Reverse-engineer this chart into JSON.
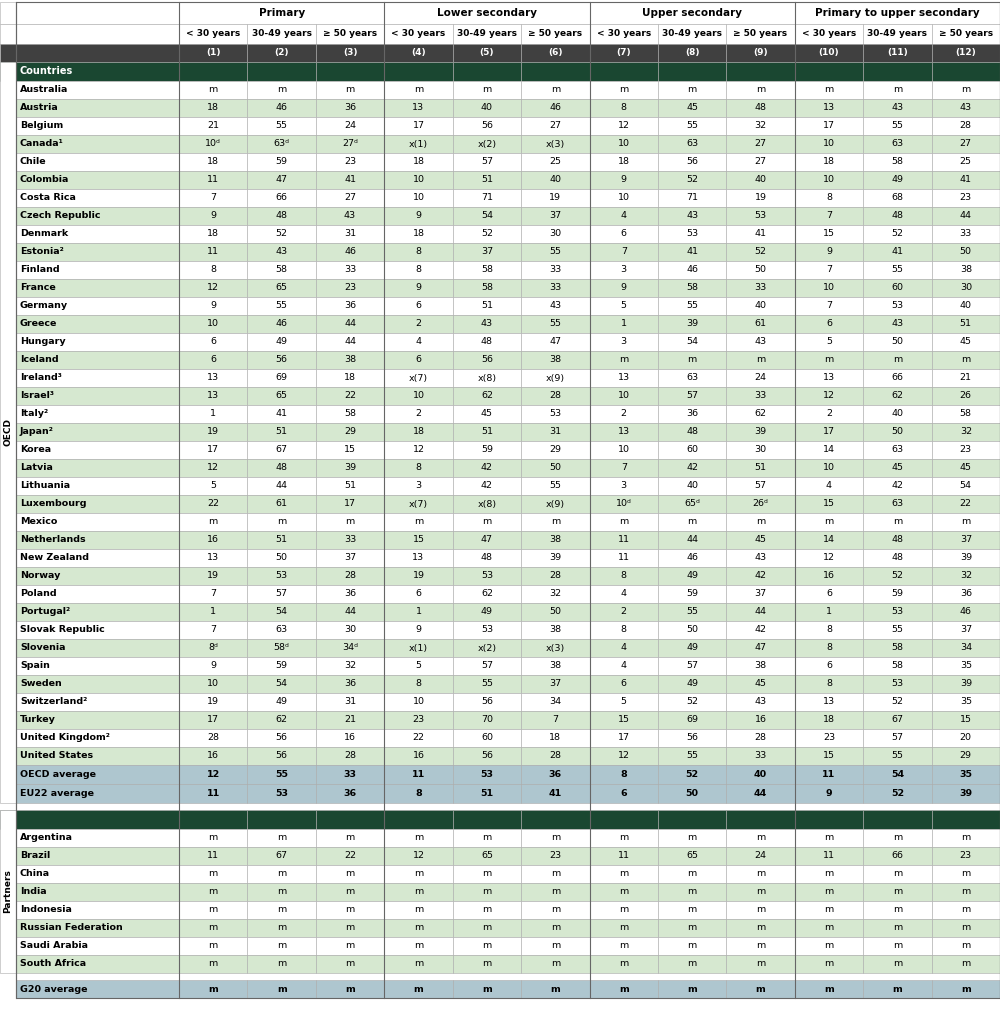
{
  "col_groups": [
    {
      "label": "Primary",
      "span": 3
    },
    {
      "label": "Lower secondary",
      "span": 3
    },
    {
      "label": "Upper secondary",
      "span": 3
    },
    {
      "label": "Primary to upper secondary",
      "span": 3
    }
  ],
  "col_headers": [
    "< 30 years",
    "30-49 years",
    "≥ 50 years",
    "< 30 years",
    "30-49 years",
    "≥ 50 years",
    "< 30 years",
    "30-49 years",
    "≥ 50 years",
    "< 30 years",
    "30-49 years",
    "≥ 50 years"
  ],
  "col_numbers": [
    "(1)",
    "(2)",
    "(3)",
    "(4)",
    "(5)",
    "(6)",
    "(7)",
    "(8)",
    "(9)",
    "(10)",
    "(11)",
    "(12)"
  ],
  "oecd_rows": [
    {
      "country": "Australia",
      "shade": false,
      "data": [
        "m",
        "m",
        "m",
        "m",
        "m",
        "m",
        "m",
        "m",
        "m",
        "m",
        "m",
        "m"
      ]
    },
    {
      "country": "Austria",
      "shade": true,
      "data": [
        "18",
        "46",
        "36",
        "13",
        "40",
        "46",
        "8",
        "45",
        "48",
        "13",
        "43",
        "43"
      ]
    },
    {
      "country": "Belgium",
      "shade": false,
      "data": [
        "21",
        "55",
        "24",
        "17",
        "56",
        "27",
        "12",
        "55",
        "32",
        "17",
        "55",
        "28"
      ]
    },
    {
      "country": "Canada¹",
      "shade": true,
      "data": [
        "10ᵈ",
        "63ᵈ",
        "27ᵈ",
        "x(1)",
        "x(2)",
        "x(3)",
        "10",
        "63",
        "27",
        "10",
        "63",
        "27"
      ]
    },
    {
      "country": "Chile",
      "shade": false,
      "data": [
        "18",
        "59",
        "23",
        "18",
        "57",
        "25",
        "18",
        "56",
        "27",
        "18",
        "58",
        "25"
      ]
    },
    {
      "country": "Colombia",
      "shade": true,
      "data": [
        "11",
        "47",
        "41",
        "10",
        "51",
        "40",
        "9",
        "52",
        "40",
        "10",
        "49",
        "41"
      ]
    },
    {
      "country": "Costa Rica",
      "shade": false,
      "data": [
        "7",
        "66",
        "27",
        "10",
        "71",
        "19",
        "10",
        "71",
        "19",
        "8",
        "68",
        "23"
      ]
    },
    {
      "country": "Czech Republic",
      "shade": true,
      "data": [
        "9",
        "48",
        "43",
        "9",
        "54",
        "37",
        "4",
        "43",
        "53",
        "7",
        "48",
        "44"
      ]
    },
    {
      "country": "Denmark",
      "shade": false,
      "data": [
        "18",
        "52",
        "31",
        "18",
        "52",
        "30",
        "6",
        "53",
        "41",
        "15",
        "52",
        "33"
      ]
    },
    {
      "country": "Estonia²",
      "shade": true,
      "data": [
        "11",
        "43",
        "46",
        "8",
        "37",
        "55",
        "7",
        "41",
        "52",
        "9",
        "41",
        "50"
      ]
    },
    {
      "country": "Finland",
      "shade": false,
      "data": [
        "8",
        "58",
        "33",
        "8",
        "58",
        "33",
        "3",
        "46",
        "50",
        "7",
        "55",
        "38"
      ]
    },
    {
      "country": "France",
      "shade": true,
      "data": [
        "12",
        "65",
        "23",
        "9",
        "58",
        "33",
        "9",
        "58",
        "33",
        "10",
        "60",
        "30"
      ]
    },
    {
      "country": "Germany",
      "shade": false,
      "data": [
        "9",
        "55",
        "36",
        "6",
        "51",
        "43",
        "5",
        "55",
        "40",
        "7",
        "53",
        "40"
      ]
    },
    {
      "country": "Greece",
      "shade": true,
      "data": [
        "10",
        "46",
        "44",
        "2",
        "43",
        "55",
        "1",
        "39",
        "61",
        "6",
        "43",
        "51"
      ]
    },
    {
      "country": "Hungary",
      "shade": false,
      "data": [
        "6",
        "49",
        "44",
        "4",
        "48",
        "47",
        "3",
        "54",
        "43",
        "5",
        "50",
        "45"
      ]
    },
    {
      "country": "Iceland",
      "shade": true,
      "data": [
        "6",
        "56",
        "38",
        "6",
        "56",
        "38",
        "m",
        "m",
        "m",
        "m",
        "m",
        "m"
      ]
    },
    {
      "country": "Ireland³",
      "shade": false,
      "data": [
        "13",
        "69",
        "18",
        "x(7)",
        "x(8)",
        "x(9)",
        "13",
        "63",
        "24",
        "13",
        "66",
        "21"
      ]
    },
    {
      "country": "Israel³",
      "shade": true,
      "data": [
        "13",
        "65",
        "22",
        "10",
        "62",
        "28",
        "10",
        "57",
        "33",
        "12",
        "62",
        "26"
      ]
    },
    {
      "country": "Italy²",
      "shade": false,
      "data": [
        "1",
        "41",
        "58",
        "2",
        "45",
        "53",
        "2",
        "36",
        "62",
        "2",
        "40",
        "58"
      ]
    },
    {
      "country": "Japan²",
      "shade": true,
      "data": [
        "19",
        "51",
        "29",
        "18",
        "51",
        "31",
        "13",
        "48",
        "39",
        "17",
        "50",
        "32"
      ]
    },
    {
      "country": "Korea",
      "shade": false,
      "data": [
        "17",
        "67",
        "15",
        "12",
        "59",
        "29",
        "10",
        "60",
        "30",
        "14",
        "63",
        "23"
      ]
    },
    {
      "country": "Latvia",
      "shade": true,
      "data": [
        "12",
        "48",
        "39",
        "8",
        "42",
        "50",
        "7",
        "42",
        "51",
        "10",
        "45",
        "45"
      ]
    },
    {
      "country": "Lithuania",
      "shade": false,
      "data": [
        "5",
        "44",
        "51",
        "3",
        "42",
        "55",
        "3",
        "40",
        "57",
        "4",
        "42",
        "54"
      ]
    },
    {
      "country": "Luxembourg",
      "shade": true,
      "data": [
        "22",
        "61",
        "17",
        "x(7)",
        "x(8)",
        "x(9)",
        "10ᵈ",
        "65ᵈ",
        "26ᵈ",
        "15",
        "63",
        "22"
      ]
    },
    {
      "country": "Mexico",
      "shade": false,
      "data": [
        "m",
        "m",
        "m",
        "m",
        "m",
        "m",
        "m",
        "m",
        "m",
        "m",
        "m",
        "m"
      ]
    },
    {
      "country": "Netherlands",
      "shade": true,
      "data": [
        "16",
        "51",
        "33",
        "15",
        "47",
        "38",
        "11",
        "44",
        "45",
        "14",
        "48",
        "37"
      ]
    },
    {
      "country": "New Zealand",
      "shade": false,
      "data": [
        "13",
        "50",
        "37",
        "13",
        "48",
        "39",
        "11",
        "46",
        "43",
        "12",
        "48",
        "39"
      ]
    },
    {
      "country": "Norway",
      "shade": true,
      "data": [
        "19",
        "53",
        "28",
        "19",
        "53",
        "28",
        "8",
        "49",
        "42",
        "16",
        "52",
        "32"
      ]
    },
    {
      "country": "Poland",
      "shade": false,
      "data": [
        "7",
        "57",
        "36",
        "6",
        "62",
        "32",
        "4",
        "59",
        "37",
        "6",
        "59",
        "36"
      ]
    },
    {
      "country": "Portugal²",
      "shade": true,
      "data": [
        "1",
        "54",
        "44",
        "1",
        "49",
        "50",
        "2",
        "55",
        "44",
        "1",
        "53",
        "46"
      ]
    },
    {
      "country": "Slovak Republic",
      "shade": false,
      "data": [
        "7",
        "63",
        "30",
        "9",
        "53",
        "38",
        "8",
        "50",
        "42",
        "8",
        "55",
        "37"
      ]
    },
    {
      "country": "Slovenia",
      "shade": true,
      "data": [
        "8ᵈ",
        "58ᵈ",
        "34ᵈ",
        "x(1)",
        "x(2)",
        "x(3)",
        "4",
        "49",
        "47",
        "8",
        "58",
        "34"
      ]
    },
    {
      "country": "Spain",
      "shade": false,
      "data": [
        "9",
        "59",
        "32",
        "5",
        "57",
        "38",
        "4",
        "57",
        "38",
        "6",
        "58",
        "35"
      ]
    },
    {
      "country": "Sweden",
      "shade": true,
      "data": [
        "10",
        "54",
        "36",
        "8",
        "55",
        "37",
        "6",
        "49",
        "45",
        "8",
        "53",
        "39"
      ]
    },
    {
      "country": "Switzerland²",
      "shade": false,
      "data": [
        "19",
        "49",
        "31",
        "10",
        "56",
        "34",
        "5",
        "52",
        "43",
        "13",
        "52",
        "35"
      ]
    },
    {
      "country": "Turkey",
      "shade": true,
      "data": [
        "17",
        "62",
        "21",
        "23",
        "70",
        "7",
        "15",
        "69",
        "16",
        "18",
        "67",
        "15"
      ]
    },
    {
      "country": "United Kingdom²",
      "shade": false,
      "data": [
        "28",
        "56",
        "16",
        "22",
        "60",
        "18",
        "17",
        "56",
        "28",
        "23",
        "57",
        "20"
      ]
    },
    {
      "country": "United States",
      "shade": true,
      "data": [
        "16",
        "56",
        "28",
        "16",
        "56",
        "28",
        "12",
        "55",
        "33",
        "15",
        "55",
        "29"
      ]
    }
  ],
  "oecd_avg_rows": [
    {
      "country": "OECD average",
      "data": [
        "12",
        "55",
        "33",
        "11",
        "53",
        "36",
        "8",
        "52",
        "40",
        "11",
        "54",
        "35"
      ]
    },
    {
      "country": "EU22 average",
      "data": [
        "11",
        "53",
        "36",
        "8",
        "51",
        "41",
        "6",
        "50",
        "44",
        "9",
        "52",
        "39"
      ]
    }
  ],
  "partner_rows": [
    {
      "country": "Argentina",
      "shade": false,
      "data": [
        "m",
        "m",
        "m",
        "m",
        "m",
        "m",
        "m",
        "m",
        "m",
        "m",
        "m",
        "m"
      ]
    },
    {
      "country": "Brazil",
      "shade": true,
      "data": [
        "11",
        "67",
        "22",
        "12",
        "65",
        "23",
        "11",
        "65",
        "24",
        "11",
        "66",
        "23"
      ]
    },
    {
      "country": "China",
      "shade": false,
      "data": [
        "m",
        "m",
        "m",
        "m",
        "m",
        "m",
        "m",
        "m",
        "m",
        "m",
        "m",
        "m"
      ]
    },
    {
      "country": "India",
      "shade": true,
      "data": [
        "m",
        "m",
        "m",
        "m",
        "m",
        "m",
        "m",
        "m",
        "m",
        "m",
        "m",
        "m"
      ]
    },
    {
      "country": "Indonesia",
      "shade": false,
      "data": [
        "m",
        "m",
        "m",
        "m",
        "m",
        "m",
        "m",
        "m",
        "m",
        "m",
        "m",
        "m"
      ]
    },
    {
      "country": "Russian Federation",
      "shade": true,
      "data": [
        "m",
        "m",
        "m",
        "m",
        "m",
        "m",
        "m",
        "m",
        "m",
        "m",
        "m",
        "m"
      ]
    },
    {
      "country": "Saudi Arabia",
      "shade": false,
      "data": [
        "m",
        "m",
        "m",
        "m",
        "m",
        "m",
        "m",
        "m",
        "m",
        "m",
        "m",
        "m"
      ]
    },
    {
      "country": "South Africa",
      "shade": true,
      "data": [
        "m",
        "m",
        "m",
        "m",
        "m",
        "m",
        "m",
        "m",
        "m",
        "m",
        "m",
        "m"
      ]
    }
  ],
  "g20_row": {
    "country": "G20 average",
    "data": [
      "m",
      "m",
      "m",
      "m",
      "m",
      "m",
      "m",
      "m",
      "m",
      "m",
      "m",
      "m"
    ]
  },
  "colors": {
    "dark_green": "#1a4731",
    "light_green": "#d6e8d0",
    "white": "#ffffff",
    "blue_avg": "#aec6cf",
    "col_num_bg": "#404040",
    "border": "#aaaaaa",
    "group_border": "#666666"
  }
}
